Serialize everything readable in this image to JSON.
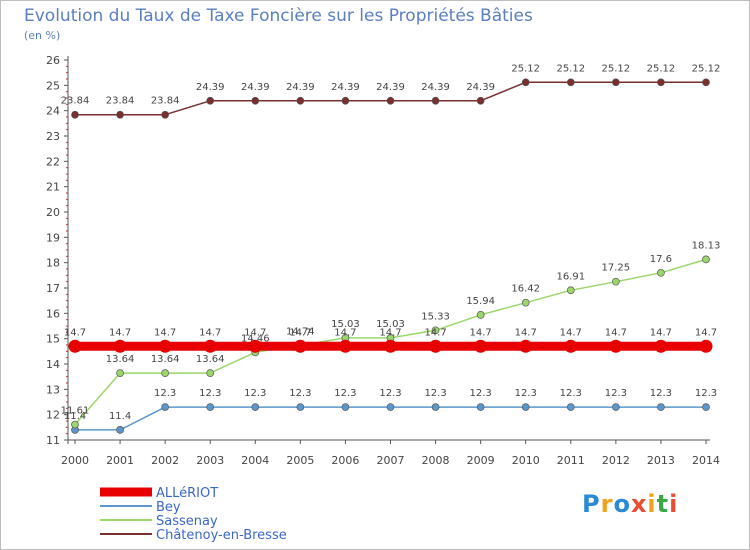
{
  "header": {
    "title": "Evolution du Taux de Taxe Foncière sur les Propriétés Bâties",
    "unit": "(en %)"
  },
  "brand": {
    "letters": [
      "P",
      "r",
      "o",
      "x",
      "i",
      "t",
      "i"
    ],
    "colors": [
      "#2b8ad6",
      "#f0a21b",
      "#2b8ad6",
      "#e94d32",
      "#f0a21b",
      "#3aa846",
      "#e94d32"
    ]
  },
  "chart_data": {
    "type": "line",
    "x": [
      "2000",
      "2001",
      "2002",
      "2003",
      "2004",
      "2005",
      "2006",
      "2007",
      "2008",
      "2009",
      "2010",
      "2011",
      "2012",
      "2013",
      "2014"
    ],
    "ylim": [
      11,
      26
    ],
    "yticks": [
      11,
      12,
      13,
      14,
      15,
      16,
      17,
      18,
      19,
      20,
      21,
      22,
      23,
      24,
      25,
      26
    ],
    "grid": false,
    "legend_position": "bottom-left",
    "series": [
      {
        "name": "ALLéRIOT",
        "color": "#e80000",
        "values": [
          14.7,
          14.7,
          14.7,
          14.7,
          14.7,
          14.7,
          14.7,
          14.7,
          14.7,
          14.7,
          14.7,
          14.7,
          14.7,
          14.7,
          14.7
        ],
        "labels": [
          "14.7",
          "14.7",
          "14.7",
          "14.7",
          "14.7",
          "14.7",
          "14.7",
          "14.7",
          "14.7",
          "14.7",
          "14.7",
          "14.7",
          "14.7",
          "14.7",
          "14.7"
        ]
      },
      {
        "name": "Bey",
        "color": "#5b96cc",
        "values": [
          11.4,
          11.4,
          12.3,
          12.3,
          12.3,
          12.3,
          12.3,
          12.3,
          12.3,
          12.3,
          12.3,
          12.3,
          12.3,
          12.3,
          12.3
        ],
        "labels": [
          "11.4",
          "11.4",
          "12.3",
          "12.3",
          "12.3",
          "12.3",
          "12.3",
          "12.3",
          "12.3",
          "12.3",
          "12.3",
          "12.3",
          "12.3",
          "12.3",
          "12.3"
        ]
      },
      {
        "name": "Sassenay",
        "color": "#9ad66b",
        "values": [
          11.61,
          13.64,
          13.64,
          13.64,
          14.46,
          14.74,
          15.03,
          15.03,
          15.33,
          15.94,
          16.42,
          16.91,
          17.25,
          17.6,
          18.13
        ],
        "labels": [
          "11.61",
          "13.64",
          "13.64",
          "13.64",
          "14.46",
          "14.74",
          "15.03",
          "15.03",
          "15.33",
          "15.94",
          "16.42",
          "16.91",
          "17.25",
          "17.6",
          "18.13"
        ]
      },
      {
        "name": "Châtenoy-en-Bresse",
        "color": "#7a2e2e",
        "values": [
          23.84,
          23.84,
          23.84,
          24.39,
          24.39,
          24.39,
          24.39,
          24.39,
          24.39,
          24.39,
          25.12,
          25.12,
          25.12,
          25.12,
          25.12
        ],
        "labels": [
          "23.84",
          "23.84",
          "23.84",
          "24.39",
          "24.39",
          "24.39",
          "24.39",
          "24.39",
          "24.39",
          "24.39",
          "25.12",
          "25.12",
          "25.12",
          "25.12",
          "25.12"
        ]
      }
    ]
  }
}
